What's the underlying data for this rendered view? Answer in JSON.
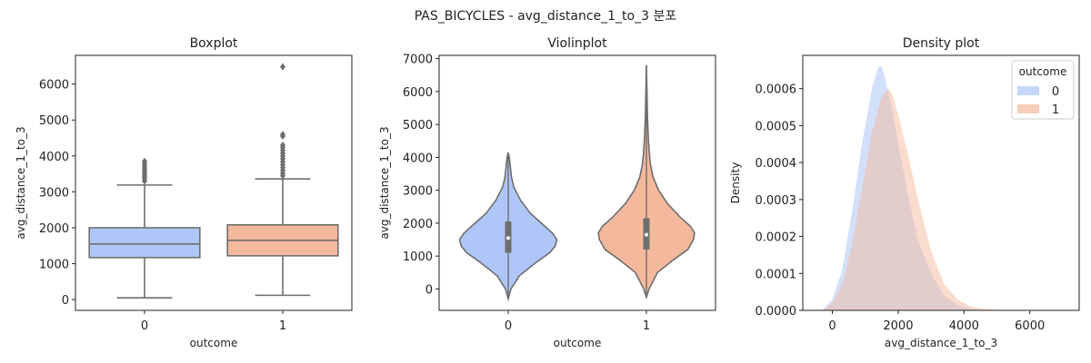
{
  "suptitle": "PAS_BICYCLES - avg_distance_1_to_3 분포",
  "colors": {
    "class0": "#aec7f8",
    "class1": "#f4b99d",
    "line": "#6e6e6e",
    "density0": "#aec7f8",
    "density1": "#f4b99d"
  },
  "chart_data": [
    {
      "type": "box",
      "title": "Boxplot",
      "xlabel": "outcome",
      "ylabel": "avg_distance_1_to_3",
      "categories": [
        "0",
        "1"
      ],
      "ylim": [
        -300,
        6800
      ],
      "yticks": [
        0,
        1000,
        2000,
        3000,
        4000,
        5000,
        6000
      ],
      "series": [
        {
          "category": "0",
          "whisker_low": 50,
          "q1": 1170,
          "median": 1550,
          "q3": 2000,
          "whisker_high": 3190,
          "outliers": [
            3300,
            3360,
            3420,
            3480,
            3540,
            3600,
            3660,
            3720,
            3790,
            3850
          ]
        },
        {
          "category": "1",
          "whisker_low": 120,
          "q1": 1220,
          "median": 1650,
          "q3": 2080,
          "whisker_high": 3360,
          "outliers": [
            3450,
            3520,
            3600,
            3680,
            3760,
            3840,
            3920,
            4000,
            4080,
            4160,
            4240,
            4300,
            4550,
            4600,
            6480
          ]
        }
      ]
    },
    {
      "type": "violin",
      "title": "Violinplot",
      "xlabel": "outcome",
      "ylabel": "avg_distance_1_to_3",
      "categories": [
        "0",
        "1"
      ],
      "ylim": [
        -650,
        7100
      ],
      "yticks": [
        0,
        1000,
        2000,
        3000,
        4000,
        5000,
        6000,
        7000
      ],
      "series": [
        {
          "category": "0",
          "min": -300,
          "max": 4150,
          "q1": 1100,
          "median": 1550,
          "q3": 2050,
          "profile": [
            [
              -300,
              0
            ],
            [
              0,
              0.05
            ],
            [
              400,
              0.2
            ],
            [
              800,
              0.5
            ],
            [
              1100,
              0.75
            ],
            [
              1300,
              0.85
            ],
            [
              1500,
              0.88
            ],
            [
              1700,
              0.8
            ],
            [
              2000,
              0.6
            ],
            [
              2300,
              0.4
            ],
            [
              2700,
              0.22
            ],
            [
              3100,
              0.1
            ],
            [
              3400,
              0.06
            ],
            [
              3700,
              0.04
            ],
            [
              4000,
              0.02
            ],
            [
              4150,
              0
            ]
          ]
        },
        {
          "category": "1",
          "min": -250,
          "max": 6800,
          "q1": 1200,
          "median": 1650,
          "q3": 2150,
          "profile": [
            [
              -250,
              0
            ],
            [
              0,
              0.05
            ],
            [
              500,
              0.2
            ],
            [
              900,
              0.5
            ],
            [
              1200,
              0.75
            ],
            [
              1500,
              0.85
            ],
            [
              1700,
              0.87
            ],
            [
              1900,
              0.8
            ],
            [
              2200,
              0.6
            ],
            [
              2600,
              0.38
            ],
            [
              3000,
              0.22
            ],
            [
              3400,
              0.12
            ],
            [
              3800,
              0.07
            ],
            [
              4200,
              0.05
            ],
            [
              4600,
              0.035
            ],
            [
              5200,
              0.02
            ],
            [
              6000,
              0.01
            ],
            [
              6800,
              0
            ]
          ]
        }
      ]
    },
    {
      "type": "area",
      "title": "Density plot",
      "xlabel": "avg_distance_1_to_3",
      "ylabel": "Density",
      "xlim": [
        -900,
        7500
      ],
      "ylim": [
        0,
        0.00069
      ],
      "xticks": [
        0,
        2000,
        4000,
        6000
      ],
      "yticks": [
        0.0,
        0.0001,
        0.0002,
        0.0003,
        0.0004,
        0.0005,
        0.0006
      ],
      "ytick_labels": [
        "0.0000",
        "0.0001",
        "0.0002",
        "0.0003",
        "0.0004",
        "0.0005",
        "0.0006"
      ],
      "legend": {
        "title": "outcome",
        "placement": "top-right"
      },
      "series": [
        {
          "name": "0",
          "x": [
            -300,
            0,
            300,
            600,
            900,
            1200,
            1400,
            1500,
            1600,
            1800,
            2000,
            2300,
            2600,
            3000,
            3400,
            3800,
            4200,
            4600
          ],
          "y": [
            2e-06,
            3e-05,
            0.00011,
            0.00027,
            0.00045,
            0.0006,
            0.00066,
            0.00066,
            0.00063,
            0.00055,
            0.00045,
            0.00031,
            0.00019,
            0.0001,
            4e-05,
            1.5e-05,
            4e-06,
            0
          ]
        },
        {
          "name": "1",
          "x": [
            -300,
            0,
            300,
            600,
            900,
            1200,
            1500,
            1700,
            1800,
            2000,
            2300,
            2600,
            3000,
            3400,
            3800,
            4200,
            4600,
            5000,
            5500
          ],
          "y": [
            1e-06,
            2e-05,
            7e-05,
            0.00018,
            0.00033,
            0.00048,
            0.00058,
            0.0006,
            0.00059,
            0.00053,
            0.00042,
            0.0003,
            0.00016,
            7e-05,
            3e-05,
            1e-05,
            5e-06,
            2e-06,
            0
          ]
        }
      ]
    }
  ]
}
